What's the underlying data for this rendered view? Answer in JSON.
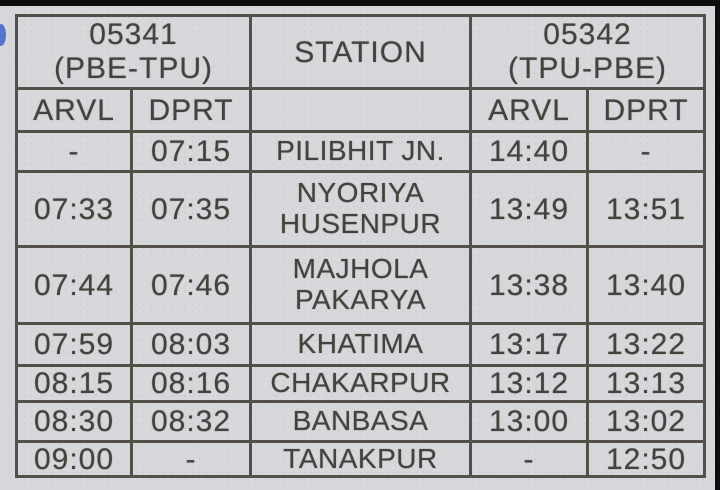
{
  "colors": {
    "paper": "#d6d8db",
    "ink": "#45413c",
    "border": "#534f49",
    "scan_edge": "#0d0d0d",
    "pen_mark": "#3f62c8"
  },
  "table": {
    "train_left": {
      "number": "05341",
      "route": "(PBE-TPU)"
    },
    "train_right": {
      "number": "05342",
      "route": "(TPU-PBE)"
    },
    "station_header": "STATION",
    "col_headers": {
      "arvl_left": "ARVL",
      "dprt_left": "DPRT",
      "arvl_right": "ARVL",
      "dprt_right": "DPRT"
    },
    "rows": [
      {
        "arvl1": "-",
        "dprt1": "07:15",
        "station": "PILIBHIT JN.",
        "arvl2": "14:40",
        "dprt2": "-"
      },
      {
        "arvl1": "07:33",
        "dprt1": "07:35",
        "station": "NYORIYA HUSENPUR",
        "arvl2": "13:49",
        "dprt2": "13:51"
      },
      {
        "arvl1": "07:44",
        "dprt1": "07:46",
        "station": "MAJHOLA PAKARYA",
        "arvl2": "13:38",
        "dprt2": "13:40"
      },
      {
        "arvl1": "07:59",
        "dprt1": "08:03",
        "station": "KHATIMA",
        "arvl2": "13:17",
        "dprt2": "13:22"
      },
      {
        "arvl1": "08:15",
        "dprt1": "08:16",
        "station": "CHAKARPUR",
        "arvl2": "13:12",
        "dprt2": "13:13"
      },
      {
        "arvl1": "08:30",
        "dprt1": "08:32",
        "station": "BANBASA",
        "arvl2": "13:00",
        "dprt2": "13:02"
      },
      {
        "arvl1": "09:00",
        "dprt1": "-",
        "station": "TANAKPUR",
        "arvl2": "-",
        "dprt2": "12:50"
      }
    ]
  }
}
